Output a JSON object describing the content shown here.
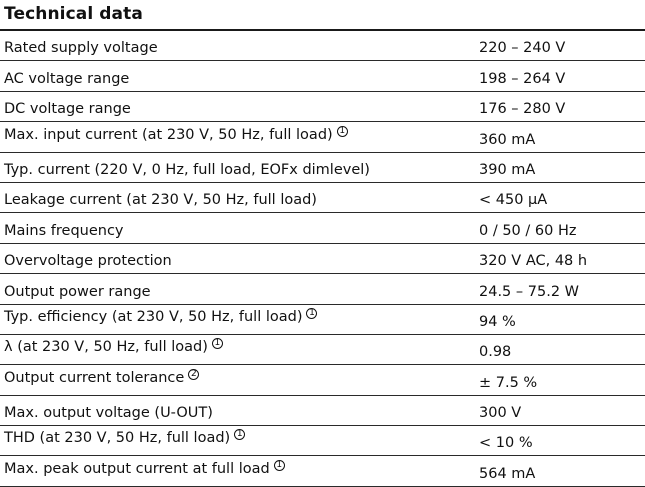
{
  "section": {
    "title": "Technical data"
  },
  "rows": [
    {
      "label": "Rated supply voltage",
      "value": "220 – 240 V",
      "note": ""
    },
    {
      "label": "AC voltage range",
      "value": "198 – 264 V",
      "note": ""
    },
    {
      "label": "DC voltage range",
      "value": "176 – 280 V",
      "note": ""
    },
    {
      "label": "Max. input current (at 230 V, 50 Hz, full load)",
      "value": "360 mA",
      "note": "1"
    },
    {
      "label": "Typ. current (220 V, 0 Hz, full load, EOFx dimlevel)",
      "value": "390 mA",
      "note": ""
    },
    {
      "label": "Leakage current (at 230 V, 50 Hz, full load)",
      "value": "< 450 µA",
      "note": ""
    },
    {
      "label": "Mains frequency",
      "value": "0 / 50 / 60 Hz",
      "note": ""
    },
    {
      "label": "Overvoltage protection",
      "value": "320 V AC, 48 h",
      "note": ""
    },
    {
      "label": "Output power range",
      "value": "24.5 – 75.2 W",
      "note": ""
    },
    {
      "label": "Typ. efficiency (at 230 V, 50 Hz, full load)",
      "value": "94 %",
      "note": "1"
    },
    {
      "label": "λ (at 230 V, 50 Hz, full load)",
      "value": "0.98",
      "note": "1"
    },
    {
      "label": "Output current tolerance",
      "value": "± 7.5 %",
      "note": "2"
    },
    {
      "label": "Max. output voltage (U-OUT)",
      "value": "300 V",
      "note": ""
    },
    {
      "label": "THD (at 230 V, 50 Hz, full load)",
      "value": "< 10 %",
      "note": "1"
    },
    {
      "label": "Max. peak output current at full load",
      "value": "564 mA",
      "note": "1"
    }
  ]
}
